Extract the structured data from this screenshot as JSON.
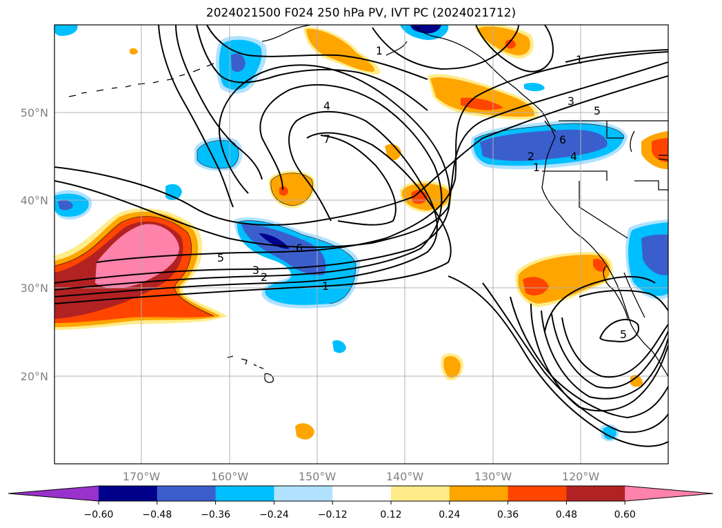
{
  "title": "2024021500 F024 250 hPa PV, IVT PC (2024021712)",
  "map": {
    "lat_labels": [
      "50°N",
      "40°N",
      "30°N",
      "20°N"
    ],
    "lon_labels": [
      "170°W",
      "160°W",
      "150°W",
      "140°W",
      "130°W",
      "120°W"
    ],
    "lat_range": [
      10,
      60
    ],
    "lon_range": [
      -180,
      -110
    ],
    "gridline_color": "#b0b0b0",
    "contour_labels": [
      "1",
      "2",
      "3",
      "4",
      "5",
      "6",
      "7"
    ]
  },
  "colorbar": {
    "ticks": [
      "−0.60",
      "−0.48",
      "−0.36",
      "−0.24",
      "−0.12",
      "0.12",
      "0.24",
      "0.36",
      "0.48",
      "0.60"
    ],
    "colors": [
      "#9932cc",
      "#00008b",
      "#3a5fcd",
      "#00bfff",
      "#b0e2ff",
      "#ffffff",
      "#ffec8b",
      "#ffa500",
      "#ff4500",
      "#b22222",
      "#ff82ab"
    ]
  }
}
